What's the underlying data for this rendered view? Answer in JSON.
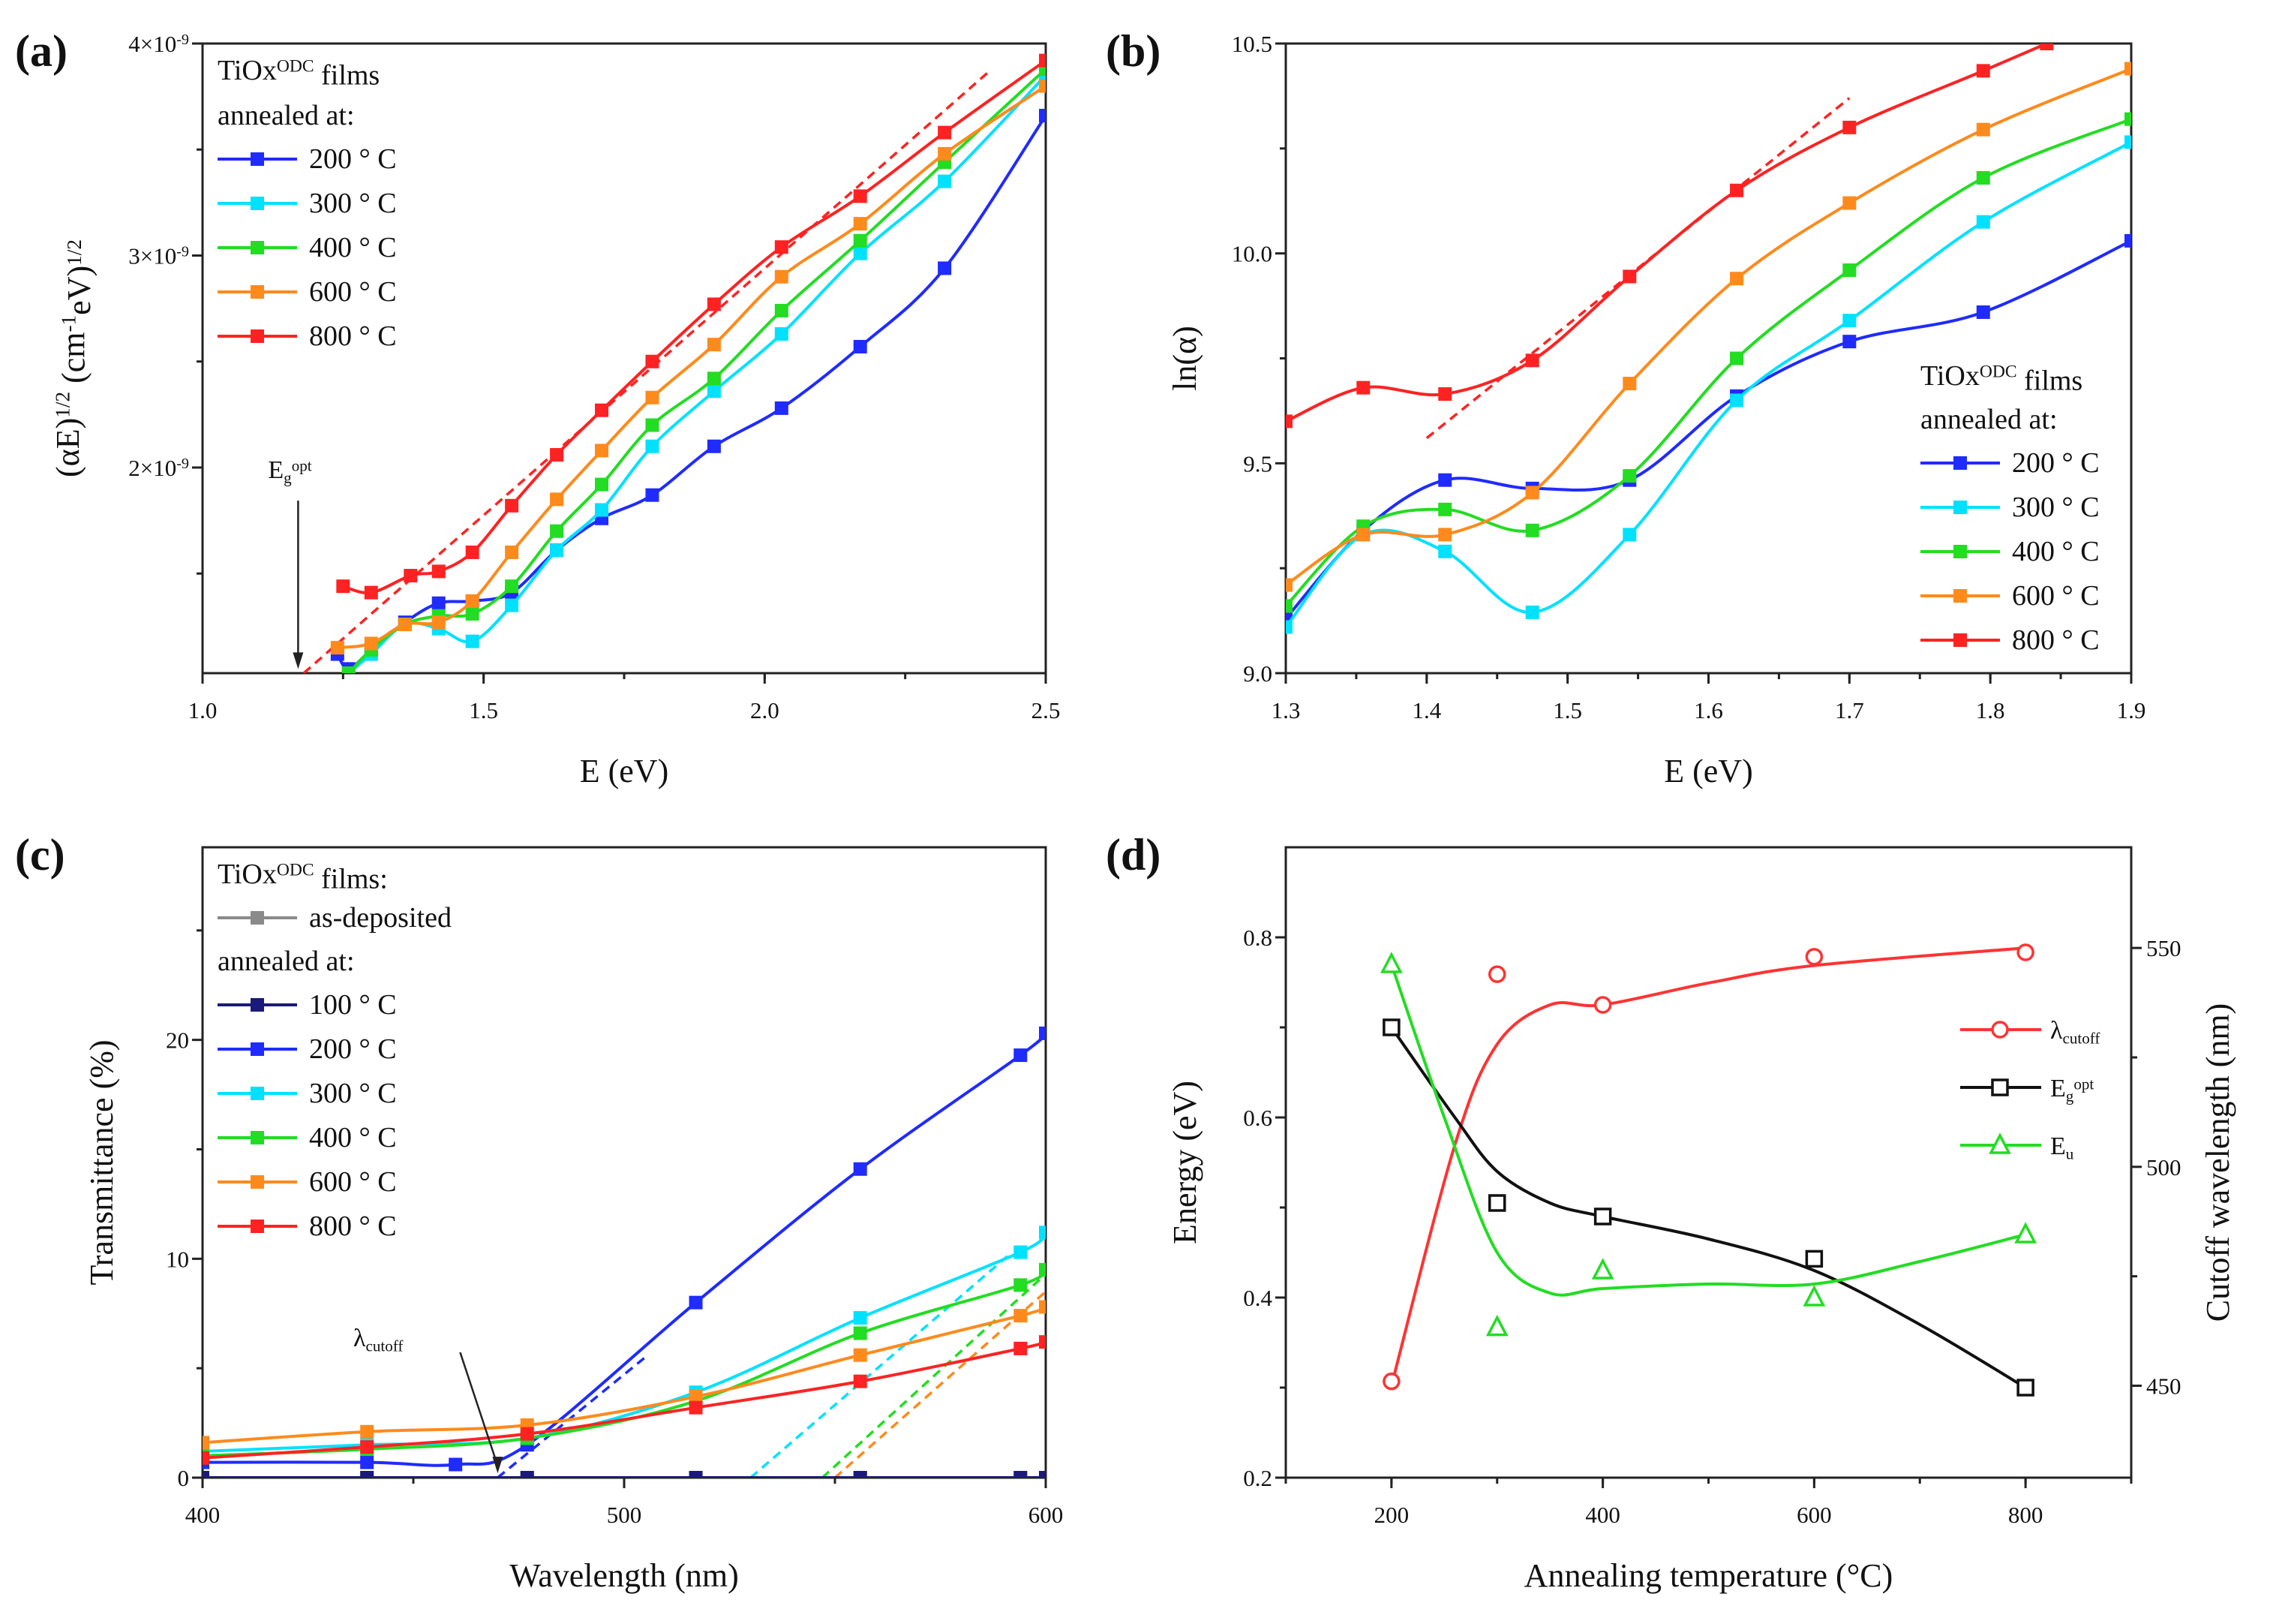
{
  "chart_data": [
    {
      "panel": "(a)",
      "type": "line",
      "xlabel": [
        {
          "t": "E (eV)"
        }
      ],
      "ylabel": [
        {
          "t": "(αE)"
        },
        {
          "t": "1/2",
          "sup": true
        },
        {
          "t": " (cm"
        },
        {
          "t": "-1",
          "sup": true
        },
        {
          "t": "eV)"
        },
        {
          "t": "1/2",
          "sup": true
        }
      ],
      "xlim": [
        1.0,
        2.5
      ],
      "ylim": [
        1.03,
        4.0
      ],
      "y_unit_note": "×10^-9",
      "xticks": [
        {
          "v": 1.0,
          "label": "1.0"
        },
        {
          "v": 1.5,
          "label": "1.5"
        },
        {
          "v": 2.0,
          "label": "2.0"
        },
        {
          "v": 2.5,
          "label": "2.5"
        }
      ],
      "yticks": [
        {
          "v": 2,
          "base": "2×10",
          "exp": "-9"
        },
        {
          "v": 3,
          "base": "3×10",
          "exp": "-9"
        },
        {
          "v": 4,
          "base": "4×10",
          "exp": "-9"
        }
      ],
      "legend": {
        "title": [
          {
            "t": "TiOx"
          },
          {
            "t": "ODC",
            "sup": true
          },
          {
            "t": " films"
          }
        ],
        "subtitle": "annealed at:",
        "placement": "top-left"
      },
      "series": [
        {
          "name": "200 ° C",
          "color": "#1f2bff",
          "x": [
            1.24,
            1.26,
            1.3,
            1.36,
            1.42,
            1.48,
            1.55,
            1.63,
            1.71,
            1.8,
            1.91,
            2.03,
            2.17,
            2.32,
            2.5
          ],
          "y": [
            1.12,
            1.05,
            1.14,
            1.27,
            1.36,
            1.37,
            1.41,
            1.61,
            1.76,
            1.87,
            2.1,
            2.28,
            2.57,
            2.94,
            3.66
          ]
        },
        {
          "name": "300 ° C",
          "color": "#00e1ff",
          "x": [
            1.26,
            1.3,
            1.36,
            1.42,
            1.48,
            1.55,
            1.63,
            1.71,
            1.8,
            1.91,
            2.03,
            2.17,
            2.32,
            2.5
          ],
          "y": [
            1.03,
            1.12,
            1.26,
            1.24,
            1.18,
            1.35,
            1.61,
            1.8,
            2.1,
            2.36,
            2.63,
            3.01,
            3.35,
            3.85
          ]
        },
        {
          "name": "400 ° C",
          "color": "#22dd22",
          "x": [
            1.26,
            1.3,
            1.36,
            1.42,
            1.48,
            1.55,
            1.63,
            1.71,
            1.8,
            1.91,
            2.03,
            2.17,
            2.32,
            2.5
          ],
          "y": [
            1.03,
            1.14,
            1.26,
            1.3,
            1.31,
            1.44,
            1.7,
            1.92,
            2.2,
            2.42,
            2.74,
            3.07,
            3.44,
            3.88
          ]
        },
        {
          "name": "600 ° C",
          "color": "#ff8a1c",
          "x": [
            1.24,
            1.3,
            1.36,
            1.42,
            1.48,
            1.55,
            1.63,
            1.71,
            1.8,
            1.91,
            2.03,
            2.17,
            2.32,
            2.5
          ],
          "y": [
            1.15,
            1.17,
            1.26,
            1.27,
            1.37,
            1.6,
            1.85,
            2.08,
            2.33,
            2.58,
            2.9,
            3.15,
            3.48,
            3.8
          ]
        },
        {
          "name": "800 ° C",
          "color": "#ff2222",
          "x": [
            1.25,
            1.3,
            1.37,
            1.42,
            1.48,
            1.55,
            1.63,
            1.71,
            1.8,
            1.91,
            2.03,
            2.17,
            2.32,
            2.5
          ],
          "y": [
            1.44,
            1.41,
            1.49,
            1.51,
            1.6,
            1.82,
            2.06,
            2.27,
            2.5,
            2.77,
            3.04,
            3.28,
            3.58,
            3.92
          ]
        }
      ],
      "fit_lines": [
        {
          "color": "#ff2222",
          "x": [
            1.18,
            2.4
          ],
          "y": [
            1.03,
            3.87
          ]
        }
      ],
      "annotation": {
        "text": [
          {
            "t": "E"
          },
          {
            "t": "g",
            "sub": true
          },
          {
            "t": "opt",
            "sup": true
          }
        ],
        "x": 1.17,
        "y_text": 1.95,
        "y_arrow_end": 1.05
      }
    },
    {
      "panel": "(b)",
      "type": "line",
      "xlabel": [
        {
          "t": "E (eV)"
        }
      ],
      "ylabel": [
        {
          "t": "ln(α)"
        }
      ],
      "xlim": [
        1.3,
        1.9
      ],
      "ylim": [
        9.0,
        10.5
      ],
      "xticks": [
        {
          "v": 1.3,
          "label": "1.3"
        },
        {
          "v": 1.4,
          "label": "1.4"
        },
        {
          "v": 1.5,
          "label": "1.5"
        },
        {
          "v": 1.6,
          "label": "1.6"
        },
        {
          "v": 1.7,
          "label": "1.7"
        },
        {
          "v": 1.8,
          "label": "1.8"
        },
        {
          "v": 1.9,
          "label": "1.9"
        }
      ],
      "yticks": [
        {
          "v": 9.0,
          "base": "9.0"
        },
        {
          "v": 9.5,
          "base": "9.5"
        },
        {
          "v": 10.0,
          "base": "10.0"
        },
        {
          "v": 10.5,
          "base": "10.5"
        }
      ],
      "legend": {
        "title": [
          {
            "t": "TiOx"
          },
          {
            "t": "ODC",
            "sup": true
          },
          {
            "t": " films"
          }
        ],
        "subtitle": "annealed at:",
        "placement": "bottom-right"
      },
      "series": [
        {
          "name": "200 ° C",
          "color": "#1f2bff",
          "x": [
            1.3,
            1.355,
            1.413,
            1.475,
            1.544,
            1.62,
            1.7,
            1.795,
            1.9
          ],
          "y": [
            9.13,
            9.34,
            9.46,
            9.44,
            9.46,
            9.66,
            9.79,
            9.86,
            10.03
          ]
        },
        {
          "name": "300 ° C",
          "color": "#00e1ff",
          "x": [
            1.3,
            1.355,
            1.413,
            1.475,
            1.544,
            1.62,
            1.7,
            1.795,
            1.9
          ],
          "y": [
            9.11,
            9.33,
            9.29,
            9.145,
            9.33,
            9.65,
            9.84,
            10.075,
            10.265
          ]
        },
        {
          "name": "400 ° C",
          "color": "#22dd22",
          "x": [
            1.3,
            1.355,
            1.413,
            1.475,
            1.544,
            1.62,
            1.7,
            1.795,
            1.9
          ],
          "y": [
            9.16,
            9.35,
            9.39,
            9.34,
            9.47,
            9.75,
            9.96,
            10.18,
            10.32
          ]
        },
        {
          "name": "600 ° C",
          "color": "#ff8a1c",
          "x": [
            1.3,
            1.355,
            1.413,
            1.475,
            1.544,
            1.62,
            1.7,
            1.795,
            1.9
          ],
          "y": [
            9.21,
            9.33,
            9.33,
            9.43,
            9.69,
            9.94,
            10.12,
            10.295,
            10.44
          ]
        },
        {
          "name": "800 ° C",
          "color": "#ff2222",
          "x": [
            1.3,
            1.355,
            1.413,
            1.475,
            1.544,
            1.62,
            1.7,
            1.795,
            1.84
          ],
          "y": [
            9.6,
            9.68,
            9.665,
            9.745,
            9.945,
            10.15,
            10.3,
            10.435,
            10.5
          ]
        }
      ],
      "fit_lines": [
        {
          "color": "#ff2222",
          "x": [
            1.4,
            1.7
          ],
          "y": [
            9.56,
            10.37
          ]
        }
      ]
    },
    {
      "panel": "(c)",
      "type": "line",
      "xlabel": [
        {
          "t": "Wavelength (nm)"
        }
      ],
      "ylabel": [
        {
          "t": "Transmittance (%)"
        }
      ],
      "xlim": [
        400,
        600
      ],
      "ylim": [
        0,
        28.8
      ],
      "xticks": [
        {
          "v": 400,
          "label": "400"
        },
        {
          "v": 500,
          "label": "500"
        },
        {
          "v": 600,
          "label": "600"
        }
      ],
      "yticks": [
        {
          "v": 0,
          "base": "0"
        },
        {
          "v": 10,
          "base": "10"
        },
        {
          "v": 20,
          "base": "20"
        }
      ],
      "legend": {
        "title": [
          {
            "t": "TiOx"
          },
          {
            "t": "ODC",
            "sup": true
          },
          {
            "t": " films:"
          }
        ],
        "first_entry": "as-deposited",
        "subtitle": "annealed at:",
        "placement": "top-left"
      },
      "series": [
        {
          "name": "as-deposited",
          "color": "#8a8a8a",
          "x": [
            400,
            439,
            477,
            517,
            556,
            594,
            600
          ],
          "y": [
            0,
            0,
            0,
            0,
            0,
            0,
            0
          ]
        },
        {
          "name": "100 ° C",
          "color": "#1a1a7a",
          "x": [
            400,
            439,
            477,
            517,
            556,
            594,
            600
          ],
          "y": [
            0,
            0,
            0,
            0,
            0,
            0,
            0
          ]
        },
        {
          "name": "200 ° C",
          "color": "#1f2bff",
          "x": [
            400,
            439,
            460,
            477,
            517,
            556,
            594,
            600
          ],
          "y": [
            0.7,
            0.7,
            0.6,
            1.5,
            8.0,
            14.1,
            19.3,
            20.3
          ]
        },
        {
          "name": "300 ° C",
          "color": "#00e1ff",
          "x": [
            400,
            439,
            477,
            517,
            556,
            594,
            600
          ],
          "y": [
            1.2,
            1.5,
            1.8,
            3.9,
            7.3,
            10.3,
            11.2
          ]
        },
        {
          "name": "400 ° C",
          "color": "#22dd22",
          "x": [
            400,
            439,
            477,
            517,
            556,
            594,
            600
          ],
          "y": [
            1.0,
            1.3,
            1.8,
            3.5,
            6.6,
            8.8,
            9.5
          ]
        },
        {
          "name": "600 ° C",
          "color": "#ff8a1c",
          "x": [
            400,
            439,
            477,
            517,
            556,
            594,
            600
          ],
          "y": [
            1.6,
            2.1,
            2.4,
            3.7,
            5.6,
            7.4,
            7.8
          ]
        },
        {
          "name": "800 ° C",
          "color": "#ff2222",
          "x": [
            400,
            439,
            477,
            517,
            556,
            594,
            600
          ],
          "y": [
            0.9,
            1.4,
            2.0,
            3.2,
            4.4,
            5.9,
            6.2
          ]
        }
      ],
      "fit_lines": [
        {
          "color": "#1f2bff",
          "x": [
            470,
            505
          ],
          "y": [
            0,
            5.5
          ]
        },
        {
          "color": "#00e1ff",
          "x": [
            530,
            592
          ],
          "y": [
            0,
            10.3
          ]
        },
        {
          "color": "#22dd22",
          "x": [
            547,
            600
          ],
          "y": [
            0,
            9.3
          ]
        },
        {
          "color": "#ff8a1c",
          "x": [
            550,
            600
          ],
          "y": [
            0,
            8.5
          ]
        }
      ],
      "annotation": {
        "text": [
          {
            "t": "λ"
          },
          {
            "t": "cutoff",
            "sub": true
          }
        ],
        "x": 470,
        "y_text": 6.0,
        "y_arrow_end": 0.2,
        "x_text": 450
      }
    },
    {
      "panel": "(d)",
      "type": "scatter",
      "xlabel": [
        {
          "t": "Annealing temperature (°C)"
        }
      ],
      "ylabel": [
        {
          "t": "Energy (eV)"
        }
      ],
      "ylabel_right": [
        {
          "t": "Cutoff wavelength (nm)"
        }
      ],
      "xlim": [
        100,
        900
      ],
      "ylim": [
        0.2,
        0.9
      ],
      "ylim_right": [
        429,
        573
      ],
      "xticks": [
        {
          "v": 200,
          "label": "200"
        },
        {
          "v": 400,
          "label": "400"
        },
        {
          "v": 600,
          "label": "600"
        },
        {
          "v": 800,
          "label": "800"
        }
      ],
      "yticks": [
        {
          "v": 0.2,
          "base": "0.2"
        },
        {
          "v": 0.4,
          "base": "0.4"
        },
        {
          "v": 0.6,
          "base": "0.6"
        },
        {
          "v": 0.8,
          "base": "0.8"
        }
      ],
      "yticks_right": [
        {
          "v": 450,
          "base": "450"
        },
        {
          "v": 500,
          "base": "500"
        },
        {
          "v": 550,
          "base": "550"
        }
      ],
      "legend": {
        "placement": "center-right"
      },
      "series": [
        {
          "name": [
            {
              "t": "λ"
            },
            {
              "t": "cutoff",
              "sub": true
            }
          ],
          "axis": "right",
          "marker": "circle",
          "color": "#ff3333",
          "x": [
            200,
            300,
            400,
            600,
            800
          ],
          "y": [
            451,
            544,
            537,
            548,
            549
          ],
          "fit_x": [
            200,
            260,
            300,
            350,
            400,
            500,
            600,
            800
          ],
          "fit_y": [
            450,
            505,
            528,
            537,
            537,
            542,
            546,
            550
          ]
        },
        {
          "name": [
            {
              "t": "E"
            },
            {
              "t": "g",
              "sub": true
            },
            {
              "t": "opt",
              "sup": true
            }
          ],
          "axis": "left",
          "marker": "square",
          "color": "#111111",
          "x": [
            200,
            300,
            400,
            600,
            800
          ],
          "y": [
            0.7,
            0.505,
            0.49,
            0.443,
            0.3
          ],
          "fit_x": [
            200,
            260,
            300,
            350,
            400,
            500,
            600,
            700,
            800
          ],
          "fit_y": [
            0.7,
            0.6,
            0.54,
            0.505,
            0.49,
            0.465,
            0.43,
            0.37,
            0.3
          ]
        },
        {
          "name": [
            {
              "t": "E"
            },
            {
              "t": "u",
              "sub": true
            }
          ],
          "axis": "left",
          "marker": "triangle",
          "color": "#22dd22",
          "x": [
            200,
            300,
            400,
            600,
            800
          ],
          "y": [
            0.77,
            0.367,
            0.43,
            0.4,
            0.47
          ],
          "fit_x": [
            200,
            250,
            300,
            350,
            400,
            500,
            600,
            700,
            800
          ],
          "fit_y": [
            0.77,
            0.6,
            0.45,
            0.405,
            0.41,
            0.415,
            0.415,
            0.44,
            0.47
          ]
        }
      ]
    }
  ]
}
